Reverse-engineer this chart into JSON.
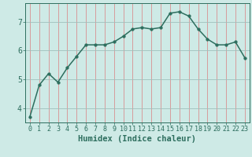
{
  "title": "",
  "xlabel": "Humidex (Indice chaleur)",
  "x_values": [
    0,
    1,
    2,
    3,
    4,
    5,
    6,
    7,
    8,
    9,
    10,
    11,
    12,
    13,
    14,
    15,
    16,
    17,
    18,
    19,
    20,
    21,
    22,
    23
  ],
  "y_values": [
    3.7,
    4.8,
    5.2,
    4.9,
    5.4,
    5.8,
    6.2,
    6.2,
    6.2,
    6.3,
    6.5,
    6.75,
    6.8,
    6.75,
    6.8,
    7.3,
    7.35,
    7.2,
    6.75,
    6.4,
    6.2,
    6.2,
    6.3,
    5.75
  ],
  "line_color": "#2d6e5e",
  "marker_size": 2.5,
  "bg_color": "#ceeae6",
  "grid_color_h": "#a0bfbb",
  "grid_color_v": "#d89090",
  "ylim": [
    3.5,
    7.65
  ],
  "xlim": [
    -0.5,
    23.5
  ],
  "yticks": [
    4,
    5,
    6,
    7
  ],
  "xtick_labels": [
    "0",
    "1",
    "2",
    "3",
    "4",
    "5",
    "6",
    "7",
    "8",
    "9",
    "10",
    "11",
    "12",
    "13",
    "14",
    "15",
    "16",
    "17",
    "18",
    "19",
    "20",
    "21",
    "22",
    "23"
  ],
  "tick_color": "#2d6e5e",
  "label_color": "#2d6e5e",
  "xlabel_fontsize": 7.5,
  "tick_fontsize": 6.0,
  "ytick_fontsize": 7.0,
  "linewidth": 1.1
}
